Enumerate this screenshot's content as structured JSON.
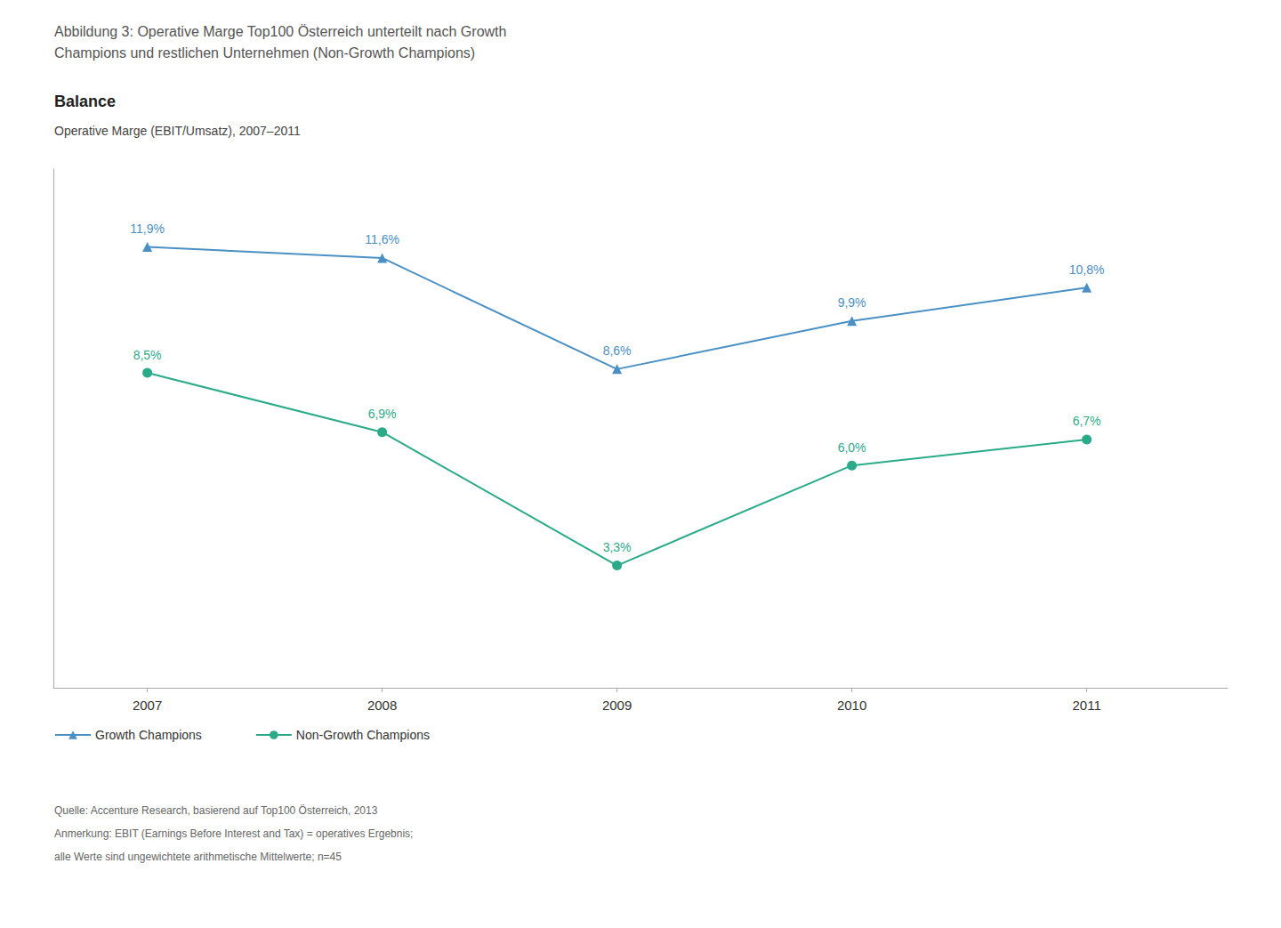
{
  "chart_data": {
    "type": "line",
    "title": [
      "Abbildung 3: Operative Marge Top100 Österreich unterteilt nach Growth",
      "Champions und restlichen Unternehmen (Non-Growth Champions)"
    ],
    "subtitle": "Operative Marge (EBIT/Umsatz), 2007–2011",
    "annotations": [
      "Balance",
      "Quelle: Accenture Research, basierend auf Top100 Österreich, 2013",
      "Anmerkung: EBIT (Earnings Before Interest and Tax) = operatives Ergebnis;",
      "alle Werte sind ungewichtete arithmetische Mittelwerte; n=45"
    ],
    "x": [
      2007,
      2008,
      2009,
      2010,
      2011
    ],
    "xlim": [
      2006.6,
      2011.6
    ],
    "xticks": [
      2007,
      2008,
      2009,
      2010,
      2011
    ],
    "ylim": [
      0,
      14
    ],
    "tick_labels": "x",
    "grid": false,
    "legend": "bottom left",
    "data_labels": true,
    "series": [
      {
        "name": "Growth Champions",
        "color": "#4A90C4",
        "marker": "triangle",
        "values": [
          11.9,
          11.6,
          8.6,
          9.9,
          10.8
        ],
        "value_labels": [
          "11,9%",
          "11,6%",
          "8,6%",
          "9,9%",
          "10,8%"
        ]
      },
      {
        "name": "Non-Growth Champions",
        "color": "#2BAA8A",
        "marker": "circle",
        "values": [
          8.5,
          6.9,
          3.3,
          6.0,
          6.7
        ],
        "value_labels": [
          "8,5%",
          "6,9%",
          "3,3%",
          "6,0%",
          "6,7%"
        ]
      }
    ]
  }
}
